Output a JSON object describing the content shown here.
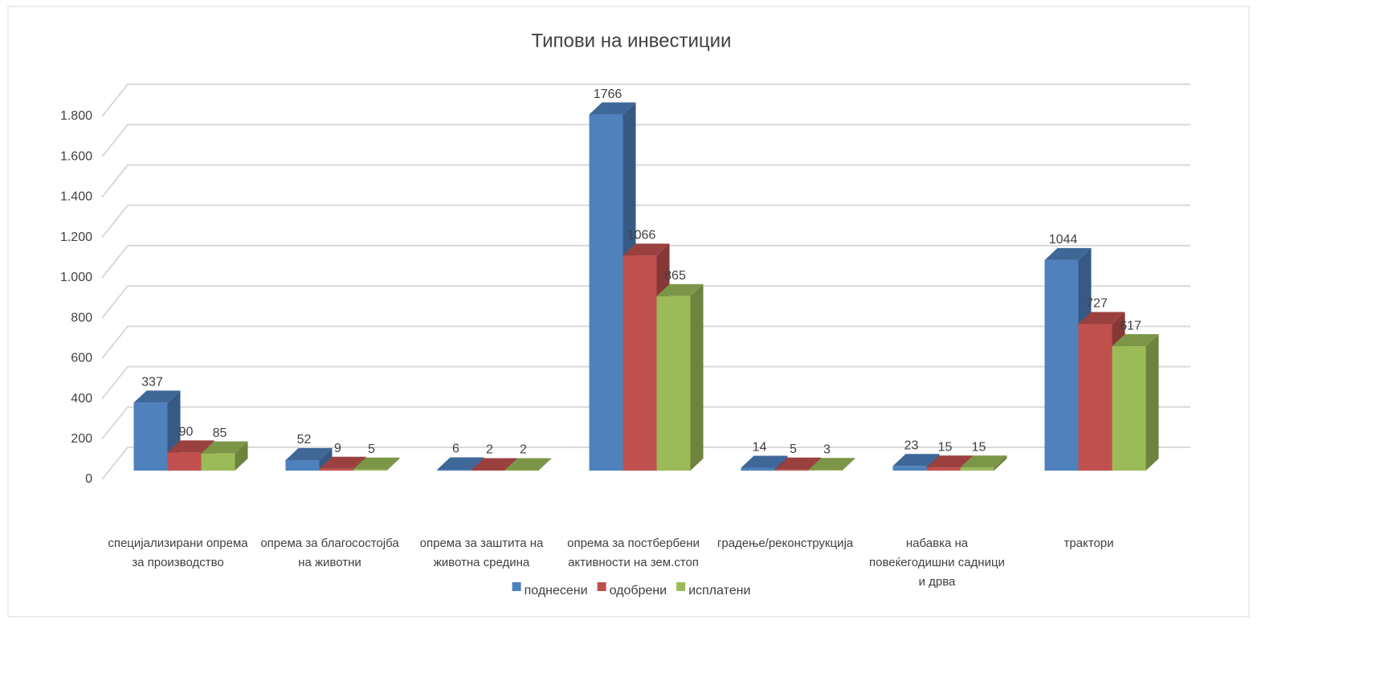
{
  "chart_data": {
    "type": "bar3d",
    "title": "Типови на инвестиции",
    "categories": [
      "специјализирани опрема за производство",
      "опрема за благосостојба на животни",
      "опрема за заштита на животна средина",
      "опрема за постбербени активности на зем.стоп",
      "градење/реконструкција",
      "набавка на повеќегодишни садници и дрва",
      "трактори"
    ],
    "series": [
      {
        "name": "поднесени",
        "color": "#4f81bd",
        "values": [
          337,
          52,
          6,
          1766,
          14,
          23,
          1044
        ]
      },
      {
        "name": "одобрени",
        "color": "#c0504d",
        "values": [
          90,
          9,
          2,
          1066,
          5,
          15,
          727
        ]
      },
      {
        "name": "исплатени",
        "color": "#9bbb59",
        "values": [
          85,
          5,
          2,
          865,
          3,
          15,
          617
        ]
      }
    ],
    "ylim": [
      0,
      1800
    ],
    "yticks": [
      0,
      200,
      400,
      600,
      800,
      {
        "value": 1000,
        "label": "1.000"
      },
      {
        "value": 1200,
        "label": "1.200"
      },
      {
        "value": 1400,
        "label": "1.400"
      },
      {
        "value": 1600,
        "label": "1.600"
      },
      {
        "value": 1800,
        "label": "1.800"
      }
    ],
    "grid": true,
    "legend": "bottom"
  }
}
